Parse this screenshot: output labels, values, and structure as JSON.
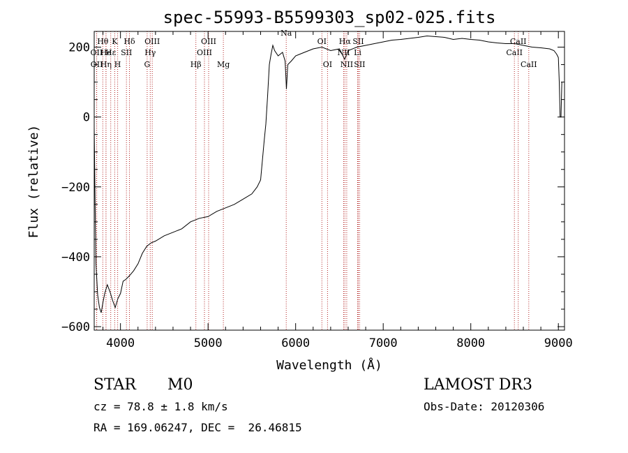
{
  "chart_data": {
    "type": "line",
    "title": "spec-55993-B5599303_sp02-025.fits",
    "xlabel": "Wavelength (Å)",
    "ylabel": "Flux (relative)",
    "xlim": [
      3700,
      9070
    ],
    "ylim": [
      -610,
      245
    ],
    "x_ticks": [
      4000,
      5000,
      6000,
      7000,
      8000,
      9000
    ],
    "y_ticks": [
      -600,
      -400,
      -200,
      0,
      200
    ],
    "grid": false,
    "series": [
      {
        "name": "flux",
        "x": [
          3700,
          3710,
          3720,
          3740,
          3760,
          3780,
          3800,
          3820,
          3850,
          3880,
          3910,
          3940,
          3970,
          4000,
          4030,
          4060,
          4100,
          4150,
          4200,
          4250,
          4300,
          4350,
          4400,
          4500,
          4600,
          4700,
          4800,
          4900,
          5000,
          5100,
          5200,
          5300,
          5400,
          5500,
          5560,
          5600,
          5640,
          5660,
          5680,
          5700,
          5720,
          5740,
          5760,
          5800,
          5850,
          5880,
          5895,
          5910,
          5950,
          6000,
          6050,
          6100,
          6200,
          6300,
          6400,
          6500,
          6560,
          6600,
          6700,
          6800,
          6900,
          7000,
          7100,
          7200,
          7300,
          7400,
          7500,
          7600,
          7700,
          7800,
          7900,
          8000,
          8100,
          8200,
          8300,
          8400,
          8500,
          8600,
          8700,
          8800,
          8900,
          8950,
          8980,
          9000,
          9010,
          9020,
          9030,
          9040
        ],
        "y": [
          -30,
          -250,
          -420,
          -510,
          -545,
          -560,
          -530,
          -505,
          -480,
          -500,
          -525,
          -545,
          -520,
          -505,
          -470,
          -465,
          -455,
          -440,
          -420,
          -390,
          -370,
          -360,
          -355,
          -340,
          -330,
          -320,
          -300,
          -290,
          -285,
          -270,
          -260,
          -250,
          -235,
          -220,
          -200,
          -180,
          -70,
          -20,
          60,
          150,
          180,
          205,
          190,
          175,
          185,
          160,
          80,
          150,
          160,
          175,
          180,
          185,
          195,
          200,
          190,
          195,
          165,
          190,
          200,
          205,
          210,
          215,
          220,
          222,
          225,
          228,
          232,
          230,
          228,
          222,
          225,
          222,
          220,
          215,
          212,
          210,
          210,
          205,
          200,
          198,
          195,
          190,
          180,
          170,
          100,
          0,
          0,
          100
        ]
      }
    ],
    "line_markers": [
      {
        "label": "Hθ",
        "x": 3798,
        "row": 1
      },
      {
        "label": "OII",
        "x": 3727,
        "row": 2
      },
      {
        "label": "OII",
        "x": 3729,
        "row": 3
      },
      {
        "label": "He",
        "x": 3835,
        "row": 2
      },
      {
        "label": "Hη",
        "x": 3835,
        "row": 3
      },
      {
        "label": "K",
        "x": 3934,
        "row": 1
      },
      {
        "label": "Hε",
        "x": 3889,
        "row": 2
      },
      {
        "label": "SII",
        "x": 4068,
        "row": 2
      },
      {
        "label": "H",
        "x": 3968,
        "row": 3
      },
      {
        "label": "Hδ",
        "x": 4102,
        "row": 1
      },
      {
        "label": "OIII",
        "x": 4363,
        "row": 1
      },
      {
        "label": "Hγ",
        "x": 4340,
        "row": 2
      },
      {
        "label": "G",
        "x": 4305,
        "row": 3
      },
      {
        "label": "Hβ",
        "x": 4861,
        "row": 3
      },
      {
        "label": "OIII",
        "x": 5007,
        "row": 1
      },
      {
        "label": "OIII",
        "x": 4959,
        "row": 2
      },
      {
        "label": "Mg",
        "x": 5175,
        "row": 3
      },
      {
        "label": "Na",
        "x": 5893,
        "row": 0
      },
      {
        "label": "OI",
        "x": 6300,
        "row": 1
      },
      {
        "label": "OI",
        "x": 6364,
        "row": 3
      },
      {
        "label": "NII",
        "x": 6548,
        "row": 2
      },
      {
        "label": "Hα",
        "x": 6563,
        "row": 1
      },
      {
        "label": "NII",
        "x": 6583,
        "row": 3
      },
      {
        "label": "SII",
        "x": 6716,
        "row": 1
      },
      {
        "label": "Li",
        "x": 6708,
        "row": 2
      },
      {
        "label": "SII",
        "x": 6731,
        "row": 3
      },
      {
        "label": "CaII",
        "x": 8498,
        "row": 2
      },
      {
        "label": "CaII",
        "x": 8542,
        "row": 1
      },
      {
        "label": "CaII",
        "x": 8662,
        "row": 3
      }
    ]
  },
  "info": {
    "object_class": "STAR",
    "subclass": "M0",
    "survey": "LAMOST DR3",
    "redshift": "cz = 78.8 ± 1.8 km/s",
    "obs_date": "Obs-Date: 20120306",
    "coords": "RA = 169.06247, DEC =  26.46815"
  }
}
